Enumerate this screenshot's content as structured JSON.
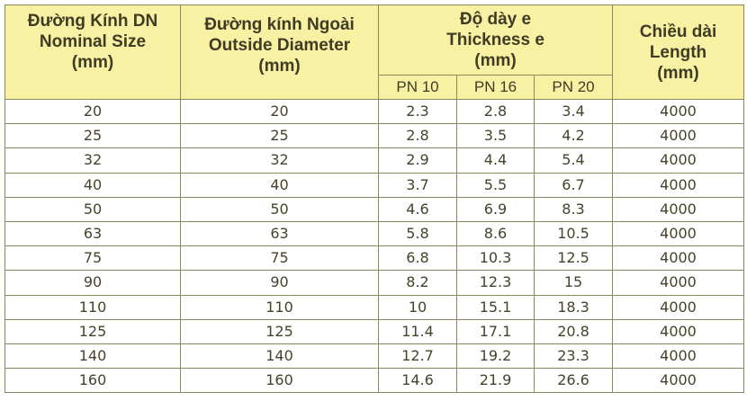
{
  "header": {
    "nominal": [
      "Đường Kính DN",
      "Nominal Size",
      "(mm)"
    ],
    "outside": [
      "Đường kính Ngoài",
      "Outside Diameter",
      "(mm)"
    ],
    "thickness": [
      "Độ dày e",
      "Thickness e",
      "(mm)"
    ],
    "length": [
      "Chiều dài",
      "Length",
      "(mm)"
    ],
    "pn": [
      "PN 10",
      "PN 16",
      "PN 20"
    ]
  },
  "rows": [
    [
      "20",
      "20",
      "2.3",
      "2.8",
      "3.4",
      "4000"
    ],
    [
      "25",
      "25",
      "2.8",
      "3.5",
      "4.2",
      "4000"
    ],
    [
      "32",
      "32",
      "2.9",
      "4.4",
      "5.4",
      "4000"
    ],
    [
      "40",
      "40",
      "3.7",
      "5.5",
      "6.7",
      "4000"
    ],
    [
      "50",
      "50",
      "4.6",
      "6.9",
      "8.3",
      "4000"
    ],
    [
      "63",
      "63",
      "5.8",
      "8.6",
      "10.5",
      "4000"
    ],
    [
      "75",
      "75",
      "6.8",
      "10.3",
      "12.5",
      "4000"
    ],
    [
      "90",
      "90",
      "8.2",
      "12.3",
      "15",
      "4000"
    ],
    [
      "110",
      "110",
      "10",
      "15.1",
      "18.3",
      "4000"
    ],
    [
      "125",
      "125",
      "11.4",
      "17.1",
      "20.8",
      "4000"
    ],
    [
      "140",
      "140",
      "12.7",
      "19.2",
      "23.3",
      "4000"
    ],
    [
      "160",
      "160",
      "14.6",
      "21.9",
      "26.6",
      "4000"
    ]
  ],
  "colors": {
    "header_bg": "#f8f0a2",
    "border": "#8c8a5c",
    "text": "#45432a"
  }
}
